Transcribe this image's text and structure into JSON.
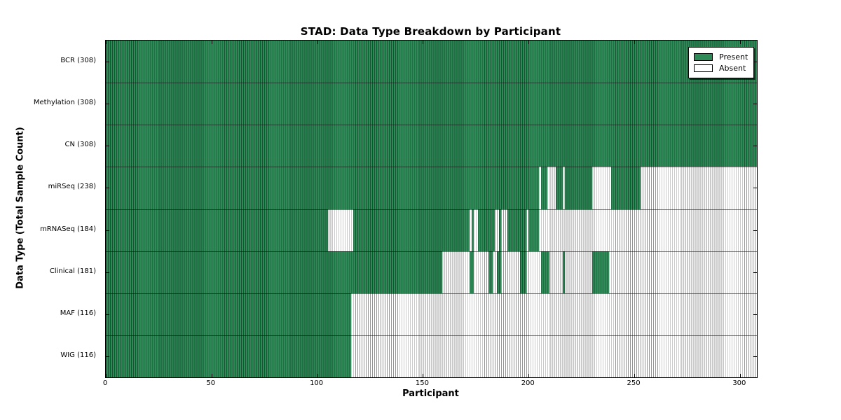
{
  "chart_data": {
    "type": "heatmap",
    "title": "STAD: Data Type Breakdown by Participant",
    "xlabel": "Participant",
    "ylabel": "Data Type (Total Sample Count)",
    "xlim": [
      0,
      308
    ],
    "n_participants": 308,
    "x_ticks": [
      0,
      50,
      100,
      150,
      200,
      250,
      300
    ],
    "grid": false,
    "legend": {
      "position": "upper right",
      "entries": [
        {
          "label": "Present",
          "color": "#2e8b57"
        },
        {
          "label": "Absent",
          "color": "#ffffff"
        }
      ]
    },
    "colors": {
      "present": "#2e8b57",
      "absent": "#ffffff",
      "bar_edge": "rgba(0,0,0,0.42)",
      "axis": "#000000"
    },
    "rows": [
      {
        "label": "BCR (308)",
        "name": "BCR",
        "total": 308,
        "runs": [
          [
            308,
            1
          ]
        ]
      },
      {
        "label": "Methylation (308)",
        "name": "Methylation",
        "total": 308,
        "runs": [
          [
            308,
            1
          ]
        ]
      },
      {
        "label": "CN (308)",
        "name": "CN",
        "total": 308,
        "runs": [
          [
            308,
            1
          ]
        ]
      },
      {
        "label": "miRSeq (238)",
        "name": "miRSeq",
        "total": 238,
        "runs": [
          [
            205,
            1
          ],
          [
            1,
            0
          ],
          [
            3,
            1
          ],
          [
            4,
            0
          ],
          [
            3,
            1
          ],
          [
            1,
            0
          ],
          [
            13,
            1
          ],
          [
            9,
            0
          ],
          [
            14,
            1
          ],
          [
            55,
            0
          ]
        ]
      },
      {
        "label": "mRNASeq (184)",
        "name": "mRNASeq",
        "total": 184,
        "runs": [
          [
            105,
            1
          ],
          [
            12,
            0
          ],
          [
            55,
            1
          ],
          [
            1,
            0
          ],
          [
            1,
            1
          ],
          [
            2,
            0
          ],
          [
            8,
            1
          ],
          [
            2,
            0
          ],
          [
            1,
            1
          ],
          [
            3,
            0
          ],
          [
            9,
            1
          ],
          [
            1,
            0
          ],
          [
            5,
            1
          ],
          [
            103,
            0
          ]
        ]
      },
      {
        "label": "Clinical (181)",
        "name": "Clinical",
        "total": 181,
        "runs": [
          [
            159,
            1
          ],
          [
            13,
            0
          ],
          [
            2,
            1
          ],
          [
            7,
            0
          ],
          [
            2,
            1
          ],
          [
            2,
            0
          ],
          [
            2,
            1
          ],
          [
            9,
            0
          ],
          [
            3,
            1
          ],
          [
            7,
            0
          ],
          [
            4,
            1
          ],
          [
            6,
            0
          ],
          [
            1,
            1
          ],
          [
            13,
            0
          ],
          [
            8,
            1
          ],
          [
            70,
            0
          ]
        ]
      },
      {
        "label": "MAF (116)",
        "name": "MAF",
        "total": 116,
        "runs": [
          [
            116,
            1
          ],
          [
            192,
            0
          ]
        ]
      },
      {
        "label": "WIG (116)",
        "name": "WIG",
        "total": 116,
        "runs": [
          [
            116,
            1
          ],
          [
            192,
            0
          ]
        ]
      }
    ]
  }
}
